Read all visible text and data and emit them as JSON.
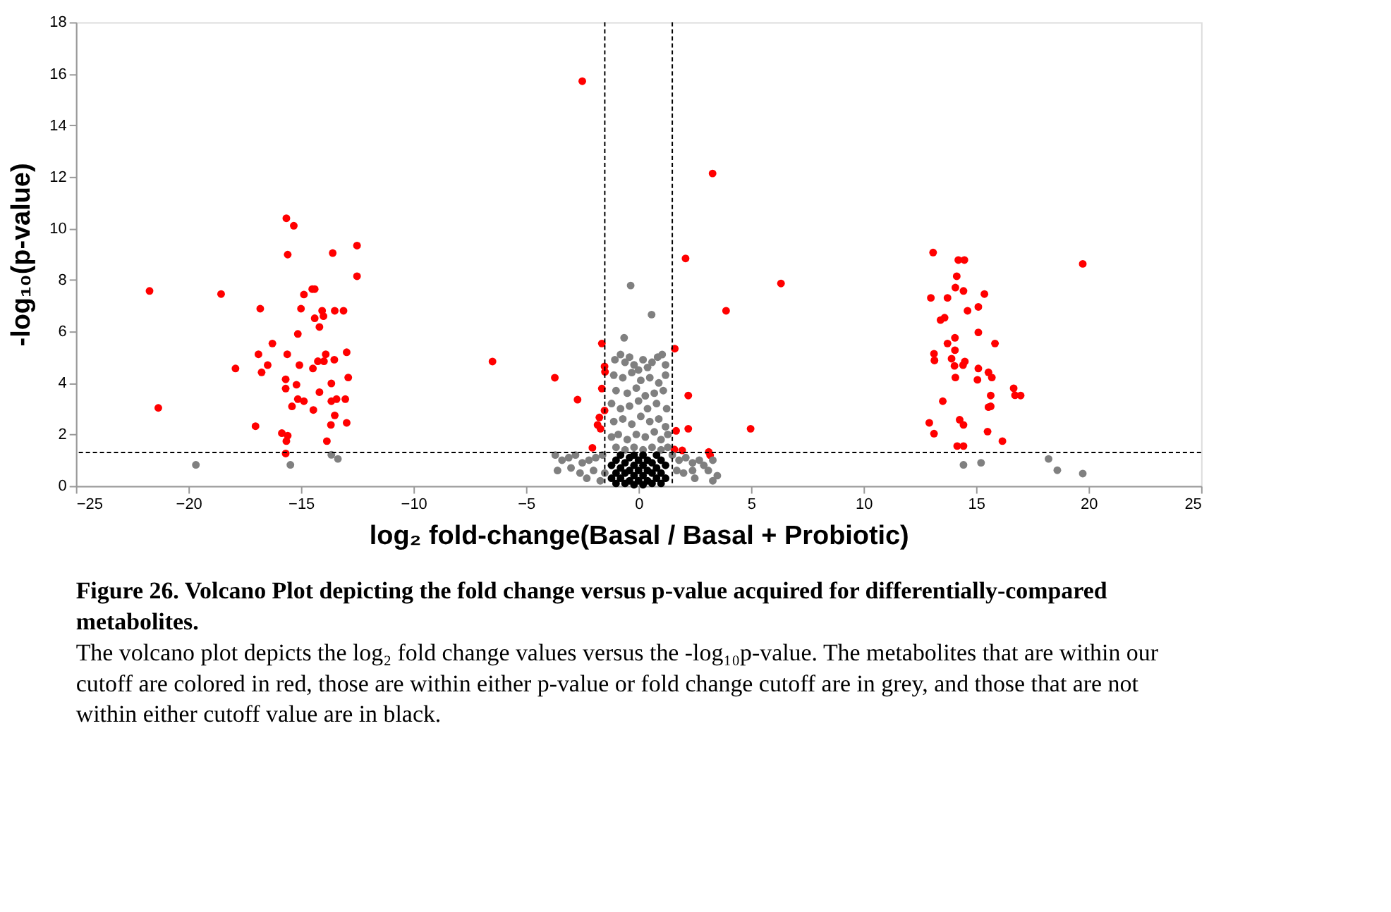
{
  "chart_data": {
    "type": "scatter",
    "xlabel": "log₂ fold-change(Basal / Basal + Probiotic)",
    "ylabel": "-log₁₀(p-value)",
    "xlim": [
      -25,
      25
    ],
    "xticks": [
      -25,
      -20,
      -15,
      -10,
      -5,
      0,
      5,
      10,
      15,
      20,
      25
    ],
    "ylim": [
      0,
      18
    ],
    "yticks": [
      0,
      2,
      4,
      6,
      8,
      10,
      12,
      14,
      16,
      18
    ],
    "grid": false,
    "legend": false,
    "marker": "circle",
    "ref_lines": [
      {
        "axis": "y",
        "value": 1.3,
        "line_style": "dashed",
        "color": "#000000"
      },
      {
        "axis": "x",
        "value": -1.5,
        "line_style": "dashed",
        "color": "#000000"
      },
      {
        "axis": "x",
        "value": 1.5,
        "line_style": "dashed",
        "color": "#000000"
      }
    ],
    "series": [
      {
        "color": "#ff0000",
        "x": [
          -15.65,
          -15.32,
          -15.59,
          -13.59,
          -12.51,
          -12.51,
          -21.73,
          -18.55,
          -16.81,
          -14.87,
          -14.5,
          -14.39,
          -15.0,
          -14.39,
          -14.06,
          -14.0,
          -13.5,
          -13.11,
          -14.18,
          -15.14,
          -16.27,
          -16.89,
          -15.61,
          -16.48,
          -16.75,
          -17.91,
          -15.07,
          -14.47,
          -14.25,
          -13.98,
          -13.9,
          -13.52,
          -12.97,
          -15.68,
          -15.68,
          -15.2,
          -12.9,
          -13.65,
          -14.18,
          -15.14,
          -14.87,
          -15.4,
          -13.65,
          -13.42,
          -13.03,
          -14.45,
          -13.5,
          -21.34,
          -13.67,
          -12.97,
          -17.02,
          -15.85,
          -15.59,
          -15.65,
          -13.85,
          -15.68,
          13.09,
          14.21,
          14.48,
          19.74,
          14.14,
          14.08,
          14.44,
          15.37,
          12.99,
          13.73,
          15.1,
          14.62,
          13.6,
          13.42,
          15.1,
          15.84,
          13.73,
          14.06,
          14.06,
          13.13,
          13.15,
          13.91,
          14.5,
          14.42,
          14.04,
          15.1,
          15.55,
          15.7,
          14.08,
          15.06,
          16.67,
          16.73,
          16.98,
          15.65,
          13.52,
          15.65,
          15.55,
          12.92,
          14.27,
          14.44,
          13.13,
          15.51,
          16.17,
          14.16,
          14.44,
          -2.5,
          3.29,
          2.09,
          6.33,
          3.89,
          -6.49,
          -3.72,
          -2.71,
          -1.63,
          -1.51,
          -1.49,
          -1.63,
          -1.51,
          -1.74,
          -1.82,
          -1.69,
          -2.05,
          1.61,
          2.21,
          2.21,
          1.67,
          4.98,
          1.59,
          1.94,
          3.12,
          3.18
        ],
        "values": [
          10.39,
          10.1,
          8.98,
          9.04,
          9.33,
          8.14,
          7.57,
          7.45,
          6.88,
          7.43,
          7.64,
          7.64,
          6.88,
          6.51,
          6.8,
          6.59,
          6.8,
          6.8,
          6.17,
          5.9,
          5.53,
          5.11,
          5.11,
          4.69,
          4.41,
          4.56,
          4.69,
          4.56,
          4.84,
          4.84,
          5.11,
          4.9,
          5.19,
          4.14,
          3.78,
          3.93,
          4.21,
          3.98,
          3.64,
          3.37,
          3.29,
          3.09,
          3.29,
          3.37,
          3.37,
          2.95,
          2.74,
          3.03,
          2.37,
          2.45,
          2.32,
          2.05,
          1.95,
          1.74,
          1.74,
          1.26,
          9.06,
          8.77,
          8.77,
          8.62,
          8.14,
          7.7,
          7.57,
          7.45,
          7.3,
          7.3,
          6.95,
          6.8,
          6.53,
          6.44,
          5.96,
          5.53,
          5.53,
          5.75,
          5.27,
          5.13,
          4.87,
          4.94,
          4.83,
          4.69,
          4.66,
          4.56,
          4.41,
          4.21,
          4.21,
          4.12,
          3.79,
          3.52,
          3.51,
          3.51,
          3.29,
          3.09,
          3.06,
          2.45,
          2.57,
          2.37,
          2.03,
          2.11,
          1.74,
          1.55,
          1.55,
          15.71,
          12.13,
          8.83,
          7.86,
          6.8,
          4.83,
          4.2,
          3.35,
          5.53,
          4.64,
          4.43,
          3.78,
          2.93,
          2.66,
          2.37,
          2.22,
          1.48,
          5.33,
          3.51,
          2.22,
          2.14,
          2.22,
          1.42,
          1.38,
          1.32,
          1.19
        ]
      },
      {
        "color": "#808080",
        "x": [
          -19.67,
          -15.47,
          -13.65,
          -13.36,
          14.44,
          15.22,
          18.22,
          18.61,
          19.74,
          -0.35,
          0.58,
          -0.64,
          -1.05,
          -0.8,
          -0.6,
          -0.4,
          -0.2,
          0.0,
          0.2,
          0.4,
          0.6,
          0.85,
          1.05,
          1.2,
          -1.1,
          -0.7,
          -0.3,
          0.1,
          0.5,
          0.9,
          1.2,
          -1.0,
          -0.5,
          -0.1,
          0.3,
          0.7,
          1.1,
          -1.2,
          -0.8,
          -0.4,
          0.0,
          0.4,
          0.8,
          1.25,
          -1.1,
          -0.7,
          -0.3,
          0.1,
          0.5,
          0.9,
          1.2,
          -1.2,
          -0.9,
          -0.5,
          -0.1,
          0.3,
          0.7,
          1.0,
          1.3,
          -1.0,
          -0.6,
          -0.2,
          0.2,
          0.6,
          1.0,
          1.3,
          -3.7,
          -3.4,
          -3.1,
          -2.8,
          -2.5,
          -2.2,
          -1.9,
          -1.6,
          -3.6,
          -3.0,
          -2.6,
          -2.0,
          -1.5,
          -2.3,
          -1.7,
          1.5,
          1.8,
          2.1,
          2.4,
          2.7,
          1.7,
          2.0,
          2.4,
          2.9,
          3.3,
          3.1,
          3.5,
          2.5,
          3.3
        ],
        "values": [
          0.82,
          0.82,
          1.21,
          1.05,
          0.82,
          0.9,
          1.05,
          0.61,
          0.48,
          7.78,
          6.65,
          5.75,
          4.9,
          5.1,
          4.8,
          5.0,
          4.7,
          4.5,
          4.9,
          4.6,
          4.8,
          5.0,
          5.1,
          4.7,
          4.3,
          4.2,
          4.4,
          4.1,
          4.2,
          4.0,
          4.3,
          3.7,
          3.6,
          3.8,
          3.5,
          3.6,
          3.7,
          3.2,
          3.0,
          3.1,
          3.3,
          3.0,
          3.2,
          3.0,
          2.5,
          2.6,
          2.4,
          2.7,
          2.5,
          2.6,
          2.3,
          1.9,
          2.0,
          1.8,
          2.0,
          1.9,
          2.1,
          1.8,
          2.0,
          1.5,
          1.4,
          1.5,
          1.4,
          1.5,
          1.4,
          1.5,
          1.2,
          1.0,
          1.1,
          1.2,
          0.9,
          1.0,
          1.1,
          1.2,
          0.6,
          0.7,
          0.5,
          0.6,
          0.5,
          0.3,
          0.2,
          1.2,
          1.0,
          1.1,
          0.9,
          1.0,
          0.6,
          0.5,
          0.6,
          0.8,
          1.0,
          0.6,
          0.4,
          0.3,
          0.2
        ]
      },
      {
        "color": "#000000",
        "x": [
          -1.2,
          -1.2,
          -1.0,
          -1.0,
          -1.0,
          -0.8,
          -0.8,
          -0.8,
          -0.6,
          -0.6,
          -0.6,
          -0.4,
          -0.4,
          -0.4,
          -0.2,
          -0.2,
          -0.2,
          -0.2,
          0.0,
          0.0,
          0.0,
          0.2,
          0.2,
          0.2,
          0.2,
          0.4,
          0.4,
          0.4,
          0.6,
          0.6,
          0.6,
          0.8,
          0.8,
          0.8,
          1.0,
          1.0,
          1.0,
          1.2,
          1.2
        ],
        "values": [
          0.3,
          0.8,
          0.1,
          0.5,
          1.0,
          0.3,
          0.7,
          1.2,
          0.1,
          0.5,
          0.9,
          0.2,
          0.6,
          1.1,
          0.05,
          0.4,
          0.8,
          1.2,
          0.2,
          0.6,
          1.0,
          0.05,
          0.4,
          0.8,
          1.2,
          0.2,
          0.6,
          1.0,
          0.1,
          0.5,
          0.9,
          0.3,
          0.7,
          1.2,
          0.1,
          0.5,
          1.0,
          0.3,
          0.8
        ]
      }
    ],
    "annotations": [
      "Figure 26. Volcano Plot depicting the fold change versus p-value acquired for differentially-compared metabolites.",
      "The volcano plot depicts the log₂ fold change values versus the -log₁₀p-value. The metabolites that are within our cutoff are colored in red, those are within either p-value or fold change cutoff are in grey, and those that are not within either cutoff value are in black."
    ]
  }
}
